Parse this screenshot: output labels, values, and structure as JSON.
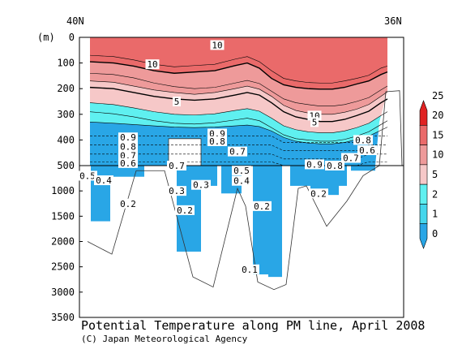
{
  "chart_data": {
    "type": "contour",
    "title": "Potential Temperature along PM line, April 2008",
    "credit": "(C) Japan Meteorological Agency",
    "x_left_label": "40N",
    "x_right_label": "36N",
    "ylabel": "(m)",
    "upper_panel": {
      "ylim": [
        0,
        500
      ],
      "ticks": [
        "0",
        "100",
        "200",
        "300",
        "400",
        "500"
      ]
    },
    "lower_panel": {
      "ylim": [
        500,
        3500
      ],
      "ticks": [
        "1000",
        "1500",
        "2000",
        "2500",
        "3000",
        "3500"
      ]
    },
    "colorbar": {
      "levels": [
        "0",
        "1",
        "2",
        "5",
        "10",
        "15",
        "20",
        "25"
      ],
      "colors": [
        "#29a6e6",
        "#45d6ec",
        "#5ff0f0",
        "#f6c8c8",
        "#ee9a9a",
        "#ea6a6a",
        "#e02222"
      ]
    },
    "contour_labels": [
      {
        "text": "10",
        "lat": 38.3,
        "depth": 30
      },
      {
        "text": "10",
        "lat": 39.1,
        "depth": 105
      },
      {
        "text": "5",
        "lat": 38.8,
        "depth": 250
      },
      {
        "text": "10",
        "lat": 37.1,
        "depth": 305
      },
      {
        "text": "5",
        "lat": 37.1,
        "depth": 330
      },
      {
        "text": "0.9",
        "lat": 39.4,
        "depth": 390
      },
      {
        "text": "0.8",
        "lat": 39.4,
        "depth": 425
      },
      {
        "text": "0.7",
        "lat": 39.4,
        "depth": 460
      },
      {
        "text": "0.6",
        "lat": 39.4,
        "depth": 490
      },
      {
        "text": "0.5",
        "lat": 39.9,
        "depth": 700
      },
      {
        "text": "0.4",
        "lat": 39.7,
        "depth": 790
      },
      {
        "text": "0.2",
        "lat": 39.4,
        "depth": 1250
      },
      {
        "text": "0.3",
        "lat": 38.8,
        "depth": 1000
      },
      {
        "text": "0.2",
        "lat": 38.7,
        "depth": 1380
      },
      {
        "text": "0.7",
        "lat": 38.8,
        "depth": 500
      },
      {
        "text": "0.3",
        "lat": 38.5,
        "depth": 880
      },
      {
        "text": "0.9",
        "lat": 38.3,
        "depth": 375
      },
      {
        "text": "0.8",
        "lat": 38.3,
        "depth": 405
      },
      {
        "text": "0.7",
        "lat": 38.05,
        "depth": 445
      },
      {
        "text": "0.5",
        "lat": 38.0,
        "depth": 600
      },
      {
        "text": "0.4",
        "lat": 38.0,
        "depth": 800
      },
      {
        "text": "0.2",
        "lat": 37.75,
        "depth": 1300
      },
      {
        "text": "0.1",
        "lat": 37.9,
        "depth": 2550
      },
      {
        "text": "0.9",
        "lat": 37.1,
        "depth": 495
      },
      {
        "text": "0.8",
        "lat": 36.85,
        "depth": 500
      },
      {
        "text": "0.7",
        "lat": 36.65,
        "depth": 470
      },
      {
        "text": "0.6",
        "lat": 36.45,
        "depth": 440
      },
      {
        "text": "0.8",
        "lat": 36.5,
        "depth": 400
      },
      {
        "text": "0.2",
        "lat": 37.05,
        "depth": 1050
      }
    ]
  }
}
